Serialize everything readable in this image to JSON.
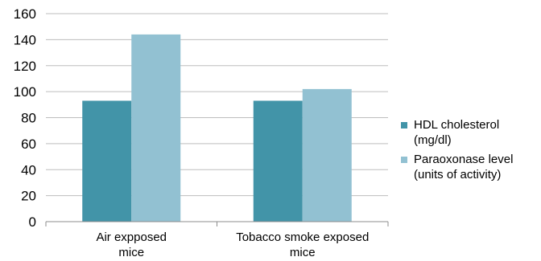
{
  "chart_data": {
    "type": "bar",
    "categories": [
      "Air expposed\nmice",
      "Tobacco smoke exposed\nmice"
    ],
    "series": [
      {
        "name": "HDL cholesterol\n(mg/dl)",
        "values": [
          93,
          93
        ],
        "color": "#4294a8"
      },
      {
        "name": "Paraoxonase level\n(units of activity)",
        "values": [
          144,
          102
        ],
        "color": "#92c1d2"
      }
    ],
    "ylim": [
      0,
      160
    ],
    "yticks": [
      "0",
      "20",
      "40",
      "60",
      "80",
      "100",
      "120",
      "140",
      "160"
    ],
    "grid": true,
    "legend": "right",
    "title": "",
    "xlabel": "",
    "ylabel": ""
  }
}
